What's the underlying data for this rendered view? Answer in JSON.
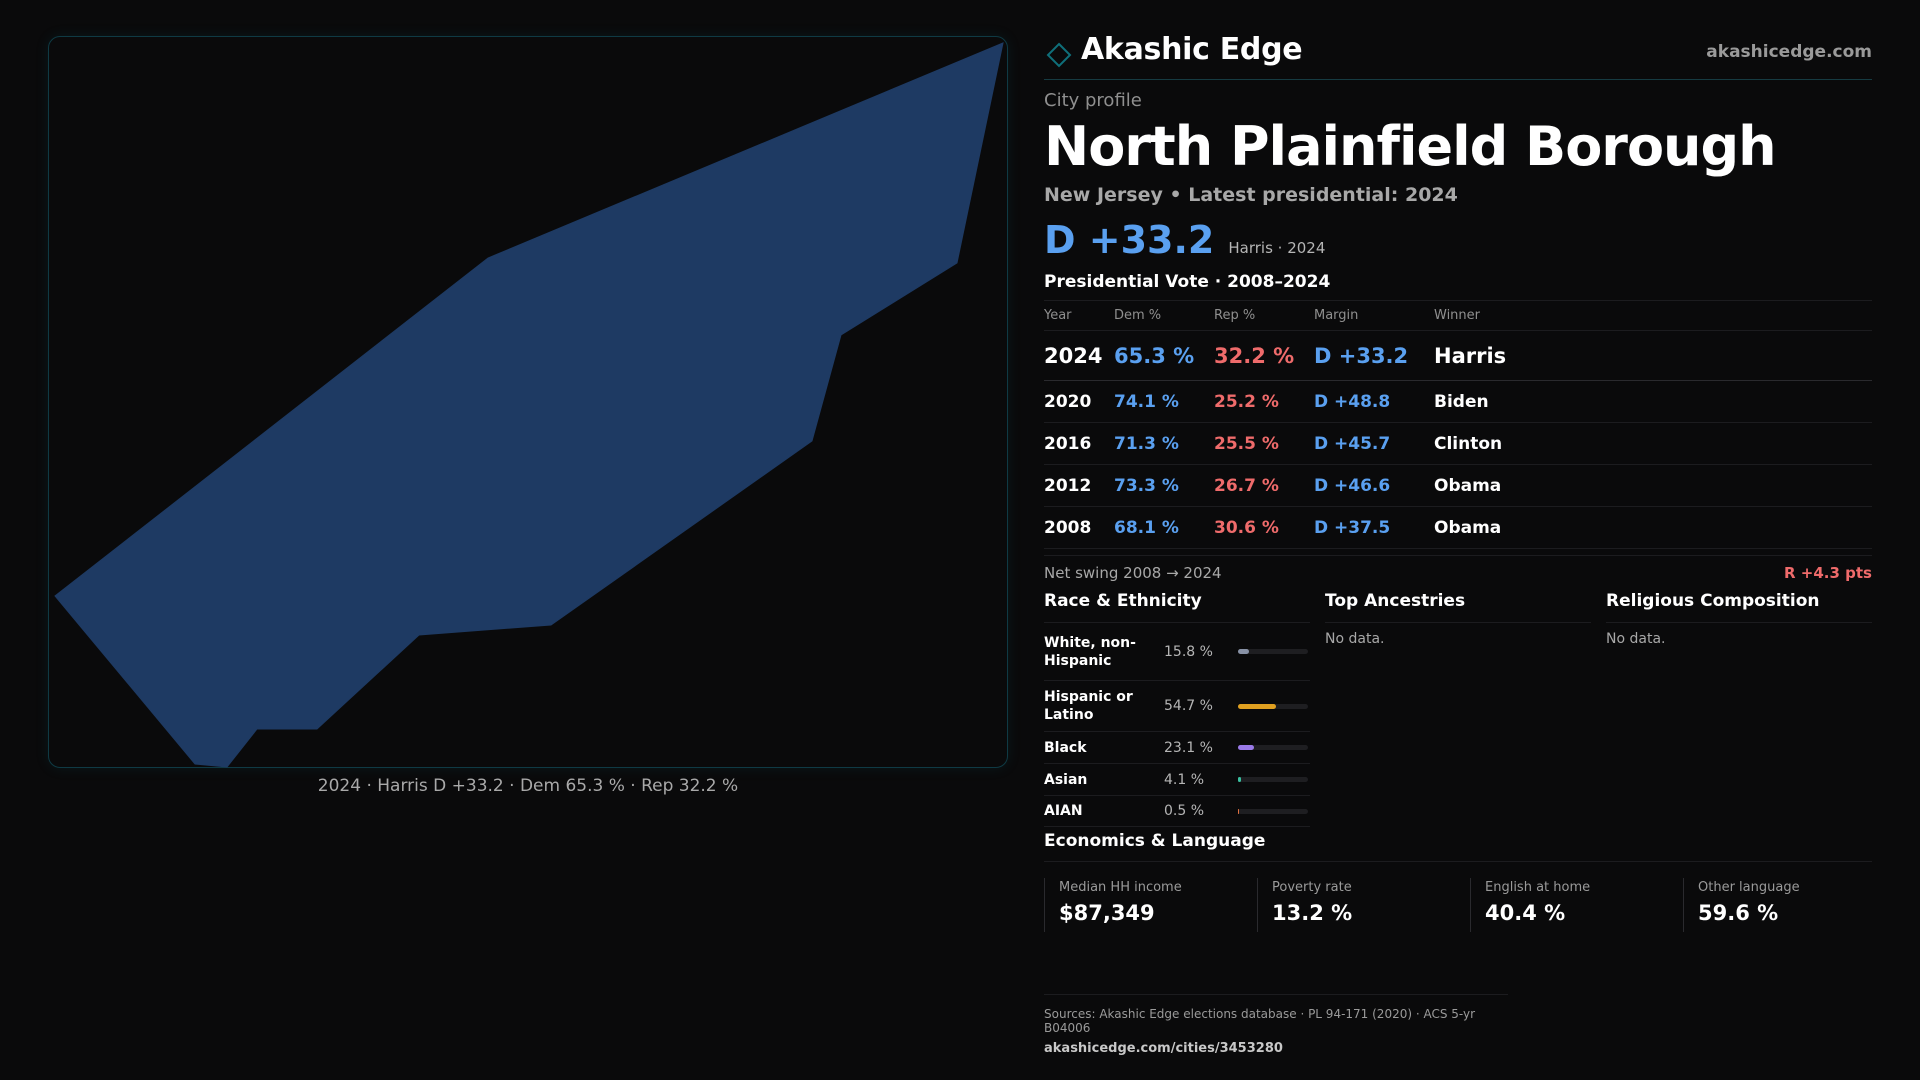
{
  "brand": {
    "name": "Akashic Edge",
    "url": "akashicedge.com",
    "accent": "#0f6f7a"
  },
  "profile": {
    "eyebrow": "City profile",
    "city": "North Plainfield Borough",
    "subtitle": "New Jersey • Latest presidential: 2024",
    "headline_margin": "D +33.2",
    "headline_note": "Harris · 2024"
  },
  "map": {
    "fill_color": "#1e3a63",
    "caption": "2024 · Harris D +33.2 · Dem 65.3 % · Rep 32.2 %"
  },
  "votes": {
    "title": "Presidential Vote · 2008–2024",
    "headers": {
      "year": "Year",
      "dem": "Dem %",
      "rep": "Rep %",
      "margin": "Margin",
      "winner": "Winner"
    },
    "rows": [
      {
        "year": "2024",
        "dem": "65.3 %",
        "rep": "32.2 %",
        "margin": "D +33.2",
        "winner": "Harris"
      },
      {
        "year": "2020",
        "dem": "74.1 %",
        "rep": "25.2 %",
        "margin": "D +48.8",
        "winner": "Biden"
      },
      {
        "year": "2016",
        "dem": "71.3 %",
        "rep": "25.5 %",
        "margin": "D +45.7",
        "winner": "Clinton"
      },
      {
        "year": "2012",
        "dem": "73.3 %",
        "rep": "26.7 %",
        "margin": "D +46.6",
        "winner": "Obama"
      },
      {
        "year": "2008",
        "dem": "68.1 %",
        "rep": "30.6 %",
        "margin": "D +37.5",
        "winner": "Obama"
      }
    ],
    "colors": {
      "dem": "#5aa0f0",
      "rep": "#ef6b6b"
    }
  },
  "swing": {
    "label": "Net swing 2008 → 2024",
    "value": "R +4.3 pts"
  },
  "race": {
    "title": "Race & Ethnicity",
    "rows": [
      {
        "label": "White, non-Hispanic",
        "pct": "15.8 %",
        "share": 0.158,
        "color": "#8892a6"
      },
      {
        "label": "Hispanic or Latino",
        "pct": "54.7 %",
        "share": 0.547,
        "color": "#e0a020"
      },
      {
        "label": "Black",
        "pct": "23.1 %",
        "share": 0.231,
        "color": "#9a7ae8"
      },
      {
        "label": "Asian",
        "pct": "4.1 %",
        "share": 0.041,
        "color": "#3ac0a0"
      },
      {
        "label": "AIAN",
        "pct": "0.5 %",
        "share": 0.005,
        "color": "#e07040"
      }
    ]
  },
  "ancestries": {
    "title": "Top Ancestries",
    "empty": "No data."
  },
  "religion": {
    "title": "Religious Composition",
    "empty": "No data."
  },
  "economics": {
    "title": "Economics & Language",
    "cells": [
      {
        "label": "Median HH income",
        "value": "$87,349"
      },
      {
        "label": "Poverty rate",
        "value": "13.2 %"
      },
      {
        "label": "English at home",
        "value": "40.4 %"
      },
      {
        "label": "Other language",
        "value": "59.6 %"
      }
    ]
  },
  "sources": {
    "text": "Sources: Akashic Edge elections database · PL 94-171 (2020) · ACS 5-yr B04006",
    "url": "akashicedge.com/cities/3453280"
  }
}
